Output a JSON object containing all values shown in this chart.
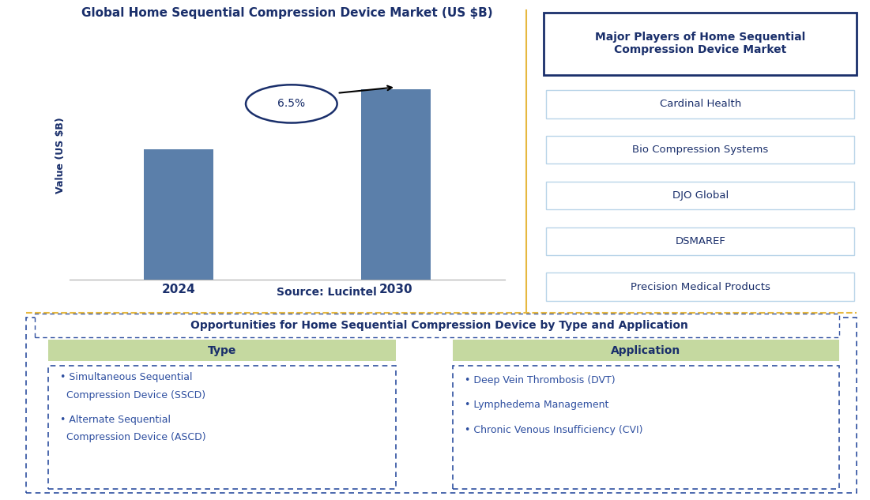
{
  "chart_title": "Global Home Sequential Compression Device Market (US $B)",
  "bar_color": "#5b7faa",
  "bar_categories": [
    "2024",
    "2030"
  ],
  "bar_values": [
    0.55,
    0.8
  ],
  "ylabel": "Value (US $B)",
  "cagr_label": "6.5%",
  "source_label": "Source: Lucintel",
  "major_players_title": "Major Players of Home Sequential\nCompression Device Market",
  "major_players": [
    "Cardinal Health",
    "Bio Compression Systems",
    "DJO Global",
    "DSMAREF",
    "Precision Medical Products"
  ],
  "opportunities_title": "Opportunities for Home Sequential Compression Device by Type and Application",
  "type_header": "Type",
  "type_items_line1": "• Simultaneous Sequential",
  "type_items_line2": "  Compression Device (SSCD)",
  "type_items_line3": "• Alternate Sequential",
  "type_items_line4": "  Compression Device (ASCD)",
  "application_header": "Application",
  "app_items": [
    "• Deep Vein Thrombosis (DVT)",
    "• Lymphedema Management",
    "• Chronic Venous Insufficiency (CVI)"
  ],
  "dark_blue": "#1a2f6b",
  "mid_blue": "#2e4fa0",
  "light_blue_box": "#b8d4e8",
  "green_header": "#c5d9a0",
  "gold_border": "#e6b840",
  "dot_border": "#2e4fa0",
  "background": "#ffffff"
}
